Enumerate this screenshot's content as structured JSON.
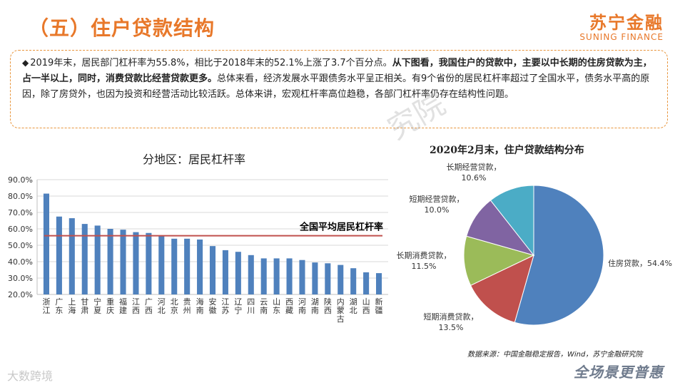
{
  "page": {
    "title": "（五）住户贷款结构",
    "logo_cn": "苏宁金融",
    "logo_en": "SUNING FINANCE",
    "watermark": "究院",
    "source": "数据来源：中国金融稳定报告，Wind，苏宁金融研究院",
    "footer_left": "大数跨境",
    "footer_right": "全场景更普惠"
  },
  "summary": {
    "bullet": "◆",
    "part1": "2019年末，居民部门杠杆率为55.8%，相比于2018年末的52.1%上涨了3.7个百分点。",
    "part2_bold": "从下图看，我国住户的贷款中，主要以中长期的住房贷款为主，占一半以上，同时，消费贷款比经营贷款更多。",
    "part3": "总体来看，经济发展水平跟债务水平呈正相关。有9个省份的居民杠杆率超过了全国水平，债务水平高的原因，除了房贷外，也因为投资和经营活动比较活跃。总体来讲，宏观杠杆率高位趋稳，各部门杠杆率仍存在结构性问题。"
  },
  "chart_data": [
    {
      "type": "bar",
      "title": "分地区：居民杠杆率",
      "categories": [
        "浙江",
        "广东",
        "上海",
        "甘肃",
        "宁夏",
        "重庆",
        "福建",
        "江西",
        "广西",
        "河北",
        "北京",
        "贵州",
        "海南",
        "安徽",
        "江苏",
        "辽宁",
        "四川",
        "云南",
        "山东",
        "西藏",
        "河南",
        "湖南",
        "陕西",
        "内蒙古",
        "湖北",
        "山西",
        "新疆"
      ],
      "values": [
        81.5,
        67.5,
        66.5,
        63,
        62,
        60,
        59.5,
        58,
        57.5,
        55.5,
        54,
        54,
        53.5,
        49.5,
        47,
        46,
        44,
        42,
        42,
        42,
        41,
        39.5,
        39,
        38,
        36,
        33.5,
        33
      ],
      "yticks": [
        "20.0%",
        "30.0%",
        "40.0%",
        "50.0%",
        "60.0%",
        "70.0%",
        "80.0%",
        "90.0%"
      ],
      "ylim": [
        20,
        90
      ],
      "reference_line": {
        "label": "全国平均居民杠杆率",
        "value": 55.8,
        "color": "#c0504d"
      },
      "bar_color": "#4f81bd",
      "grid": true
    },
    {
      "type": "pie",
      "title": "2020年2月末，住户贷款结构分布",
      "slices": [
        {
          "label": "住房贷款，54.4%",
          "value": 54.4,
          "color": "#4f81bd"
        },
        {
          "label": "短期消费贷款，\n13.5%",
          "value": 13.5,
          "color": "#c0504d"
        },
        {
          "label": "长期消费贷款，\n11.5%",
          "value": 11.5,
          "color": "#9bbb59"
        },
        {
          "label": "短期经营贷款，\n10.0%",
          "value": 10.0,
          "color": "#8064a2"
        },
        {
          "label": "长期经营贷款，\n10.6%",
          "value": 10.6,
          "color": "#4bacc6"
        }
      ]
    }
  ]
}
